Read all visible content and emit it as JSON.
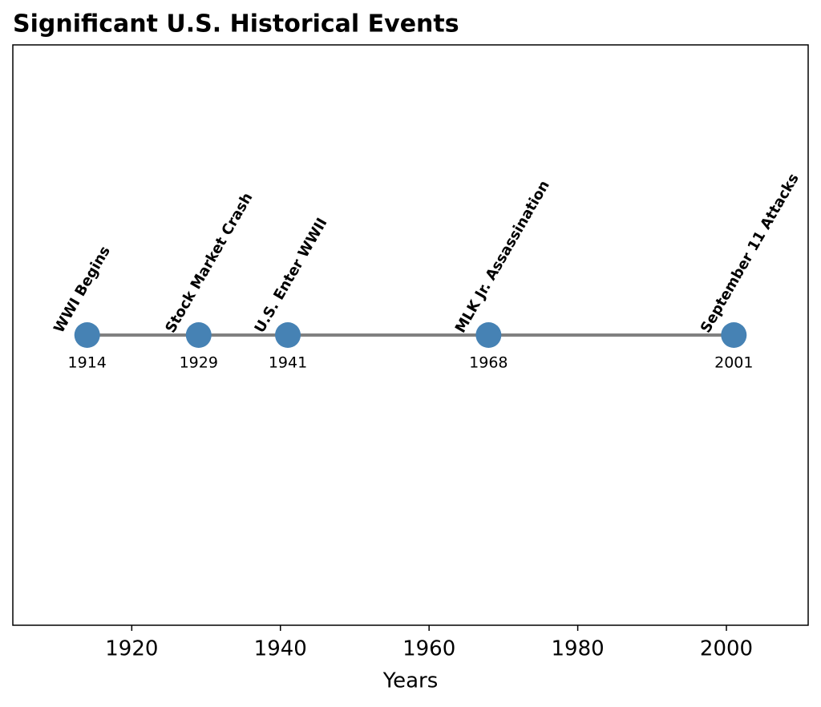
{
  "chart_data": {
    "type": "timeline",
    "title": "Significant U.S. Historical Events",
    "x_label": "Years",
    "x": [
      1914,
      1929,
      1941,
      1968,
      2001
    ],
    "events": [
      "WWI Begins",
      "Stock Market Crash",
      "U.S. Enter WWII",
      "MLK Jr. Assassination",
      "September 11 Attacks"
    ],
    "color": "#4682b4",
    "line_color": "#808080",
    "xlim": [
      1904,
      2011
    ],
    "xticks": [
      1920,
      1940,
      1960,
      1980,
      2000
    ]
  }
}
